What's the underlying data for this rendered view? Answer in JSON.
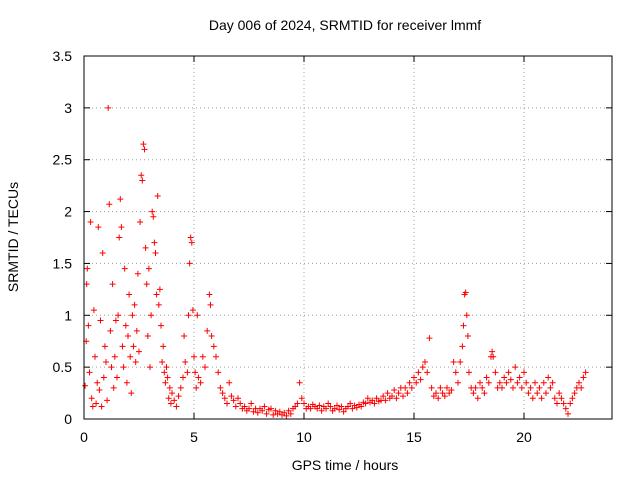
{
  "chart_data": {
    "type": "scatter",
    "title": "Day 006 of 2024, SRMTID for receiver lmmf",
    "xlabel": "GPS time / hours",
    "ylabel": "SRMTID / TECUs",
    "xlim": [
      0,
      24
    ],
    "ylim": [
      0,
      3.5
    ],
    "xticks": [
      0,
      5,
      10,
      15,
      20
    ],
    "xtick_labels": [
      "0",
      "5",
      "10",
      "15",
      "20"
    ],
    "yticks": [
      0,
      0.5,
      1,
      1.5,
      2,
      2.5,
      3,
      3.5
    ],
    "ytick_labels": [
      "0",
      "0.5",
      "1",
      "1.5",
      "2",
      "2.5",
      "3",
      "3.5"
    ],
    "grid": true,
    "marker": "+",
    "color": "#ff0000",
    "series": [
      {
        "name": "SRMTID",
        "points": [
          [
            0.05,
            0.32
          ],
          [
            0.1,
            0.75
          ],
          [
            0.12,
            1.3
          ],
          [
            0.15,
            1.45
          ],
          [
            0.2,
            0.9
          ],
          [
            0.25,
            0.45
          ],
          [
            0.3,
            1.9
          ],
          [
            0.35,
            0.2
          ],
          [
            0.4,
            0.12
          ],
          [
            0.45,
            1.05
          ],
          [
            0.5,
            0.6
          ],
          [
            0.55,
            0.15
          ],
          [
            0.6,
            0.35
          ],
          [
            0.65,
            1.85
          ],
          [
            0.7,
            0.28
          ],
          [
            0.75,
            0.95
          ],
          [
            0.8,
            0.12
          ],
          [
            0.85,
            1.6
          ],
          [
            0.9,
            0.4
          ],
          [
            0.95,
            0.7
          ],
          [
            1.0,
            0.55
          ],
          [
            1.05,
            0.18
          ],
          [
            1.1,
            3.0
          ],
          [
            1.15,
            2.07
          ],
          [
            1.2,
            0.85
          ],
          [
            1.25,
            0.5
          ],
          [
            1.3,
            1.3
          ],
          [
            1.35,
            0.3
          ],
          [
            1.4,
            0.6
          ],
          [
            1.45,
            0.95
          ],
          [
            1.5,
            0.4
          ],
          [
            1.55,
            1.0
          ],
          [
            1.6,
            1.75
          ],
          [
            1.65,
            2.12
          ],
          [
            1.7,
            1.85
          ],
          [
            1.75,
            0.7
          ],
          [
            1.8,
            0.5
          ],
          [
            1.85,
            1.45
          ],
          [
            1.9,
            0.9
          ],
          [
            1.95,
            0.35
          ],
          [
            2.0,
            0.8
          ],
          [
            2.05,
            1.2
          ],
          [
            2.1,
            0.6
          ],
          [
            2.15,
            0.25
          ],
          [
            2.2,
            1.0
          ],
          [
            2.25,
            0.7
          ],
          [
            2.3,
            1.1
          ],
          [
            2.35,
            0.55
          ],
          [
            2.4,
            0.85
          ],
          [
            2.45,
            1.4
          ],
          [
            2.5,
            0.65
          ],
          [
            2.55,
            1.9
          ],
          [
            2.6,
            2.35
          ],
          [
            2.65,
            2.3
          ],
          [
            2.7,
            2.65
          ],
          [
            2.75,
            2.6
          ],
          [
            2.8,
            1.65
          ],
          [
            2.85,
            1.3
          ],
          [
            2.9,
            0.8
          ],
          [
            2.95,
            1.45
          ],
          [
            3.0,
            0.5
          ],
          [
            3.05,
            1.0
          ],
          [
            3.1,
            2.0
          ],
          [
            3.15,
            1.95
          ],
          [
            3.2,
            1.7
          ],
          [
            3.25,
            1.6
          ],
          [
            3.3,
            1.2
          ],
          [
            3.35,
            2.15
          ],
          [
            3.4,
            1.1
          ],
          [
            3.45,
            1.25
          ],
          [
            3.5,
            0.9
          ],
          [
            3.55,
            0.55
          ],
          [
            3.6,
            0.7
          ],
          [
            3.65,
            0.45
          ],
          [
            3.7,
            0.35
          ],
          [
            3.75,
            0.5
          ],
          [
            3.8,
            0.4
          ],
          [
            3.85,
            0.2
          ],
          [
            3.9,
            0.3
          ],
          [
            3.95,
            0.15
          ],
          [
            4.0,
            0.25
          ],
          [
            4.1,
            0.18
          ],
          [
            4.2,
            0.12
          ],
          [
            4.3,
            0.22
          ],
          [
            4.4,
            0.3
          ],
          [
            4.5,
            0.4
          ],
          [
            4.55,
            0.8
          ],
          [
            4.6,
            0.55
          ],
          [
            4.7,
            0.45
          ],
          [
            4.75,
            1.0
          ],
          [
            4.8,
            1.5
          ],
          [
            4.85,
            1.75
          ],
          [
            4.9,
            1.7
          ],
          [
            4.95,
            1.05
          ],
          [
            5.0,
            0.6
          ],
          [
            5.05,
            0.45
          ],
          [
            5.1,
            0.3
          ],
          [
            5.15,
            1.0
          ],
          [
            5.2,
            0.4
          ],
          [
            5.3,
            0.35
          ],
          [
            5.4,
            0.6
          ],
          [
            5.5,
            0.5
          ],
          [
            5.6,
            0.85
          ],
          [
            5.7,
            1.2
          ],
          [
            5.75,
            1.1
          ],
          [
            5.8,
            0.8
          ],
          [
            5.9,
            0.7
          ],
          [
            6.0,
            0.6
          ],
          [
            6.1,
            0.45
          ],
          [
            6.2,
            0.3
          ],
          [
            6.3,
            0.25
          ],
          [
            6.4,
            0.2
          ],
          [
            6.5,
            0.15
          ],
          [
            6.6,
            0.35
          ],
          [
            6.7,
            0.22
          ],
          [
            6.8,
            0.18
          ],
          [
            6.9,
            0.12
          ],
          [
            7.0,
            0.2
          ],
          [
            7.1,
            0.15
          ],
          [
            7.2,
            0.1
          ],
          [
            7.3,
            0.12
          ],
          [
            7.4,
            0.08
          ],
          [
            7.5,
            0.1
          ],
          [
            7.6,
            0.15
          ],
          [
            7.7,
            0.07
          ],
          [
            7.8,
            0.1
          ],
          [
            7.9,
            0.06
          ],
          [
            8.0,
            0.1
          ],
          [
            8.1,
            0.08
          ],
          [
            8.2,
            0.12
          ],
          [
            8.3,
            0.05
          ],
          [
            8.4,
            0.09
          ],
          [
            8.5,
            0.1
          ],
          [
            8.6,
            0.04
          ],
          [
            8.7,
            0.08
          ],
          [
            8.8,
            0.05
          ],
          [
            8.9,
            0.07
          ],
          [
            9.0,
            0.04
          ],
          [
            9.1,
            0.06
          ],
          [
            9.2,
            0.03
          ],
          [
            9.3,
            0.08
          ],
          [
            9.4,
            0.05
          ],
          [
            9.5,
            0.1
          ],
          [
            9.6,
            0.12
          ],
          [
            9.7,
            0.15
          ],
          [
            9.8,
            0.35
          ],
          [
            9.9,
            0.2
          ],
          [
            10.0,
            0.15
          ],
          [
            10.1,
            0.1
          ],
          [
            10.2,
            0.12
          ],
          [
            10.3,
            0.1
          ],
          [
            10.4,
            0.14
          ],
          [
            10.5,
            0.12
          ],
          [
            10.6,
            0.1
          ],
          [
            10.7,
            0.13
          ],
          [
            10.8,
            0.08
          ],
          [
            10.9,
            0.12
          ],
          [
            11.0,
            0.1
          ],
          [
            11.1,
            0.15
          ],
          [
            11.2,
            0.12
          ],
          [
            11.3,
            0.08
          ],
          [
            11.4,
            0.1
          ],
          [
            11.5,
            0.13
          ],
          [
            11.6,
            0.09
          ],
          [
            11.7,
            0.12
          ],
          [
            11.8,
            0.07
          ],
          [
            11.9,
            0.1
          ],
          [
            12.0,
            0.12
          ],
          [
            12.1,
            0.15
          ],
          [
            12.2,
            0.1
          ],
          [
            12.3,
            0.13
          ],
          [
            12.4,
            0.11
          ],
          [
            12.5,
            0.14
          ],
          [
            12.6,
            0.12
          ],
          [
            12.7,
            0.16
          ],
          [
            12.8,
            0.15
          ],
          [
            12.9,
            0.2
          ],
          [
            13.0,
            0.16
          ],
          [
            13.1,
            0.18
          ],
          [
            13.2,
            0.15
          ],
          [
            13.3,
            0.2
          ],
          [
            13.4,
            0.17
          ],
          [
            13.5,
            0.18
          ],
          [
            13.6,
            0.22
          ],
          [
            13.7,
            0.18
          ],
          [
            13.8,
            0.25
          ],
          [
            13.9,
            0.2
          ],
          [
            14.0,
            0.22
          ],
          [
            14.1,
            0.28
          ],
          [
            14.2,
            0.2
          ],
          [
            14.3,
            0.25
          ],
          [
            14.4,
            0.3
          ],
          [
            14.5,
            0.22
          ],
          [
            14.6,
            0.3
          ],
          [
            14.7,
            0.25
          ],
          [
            14.8,
            0.35
          ],
          [
            14.9,
            0.3
          ],
          [
            15.0,
            0.4
          ],
          [
            15.1,
            0.35
          ],
          [
            15.2,
            0.45
          ],
          [
            15.3,
            0.38
          ],
          [
            15.4,
            0.5
          ],
          [
            15.5,
            0.55
          ],
          [
            15.6,
            0.45
          ],
          [
            15.7,
            0.78
          ],
          [
            15.8,
            0.3
          ],
          [
            15.9,
            0.22
          ],
          [
            16.0,
            0.25
          ],
          [
            16.1,
            0.2
          ],
          [
            16.2,
            0.3
          ],
          [
            16.3,
            0.25
          ],
          [
            16.4,
            0.22
          ],
          [
            16.5,
            0.3
          ],
          [
            16.6,
            0.25
          ],
          [
            16.7,
            0.28
          ],
          [
            16.8,
            0.55
          ],
          [
            16.9,
            0.45
          ],
          [
            17.0,
            0.35
          ],
          [
            17.1,
            0.55
          ],
          [
            17.2,
            0.7
          ],
          [
            17.25,
            0.9
          ],
          [
            17.3,
            1.2
          ],
          [
            17.35,
            1.22
          ],
          [
            17.4,
            1.0
          ],
          [
            17.45,
            0.8
          ],
          [
            17.5,
            0.45
          ],
          [
            17.6,
            0.3
          ],
          [
            17.7,
            0.25
          ],
          [
            17.8,
            0.3
          ],
          [
            17.9,
            0.2
          ],
          [
            18.0,
            0.35
          ],
          [
            18.1,
            0.3
          ],
          [
            18.2,
            0.25
          ],
          [
            18.3,
            0.4
          ],
          [
            18.4,
            0.35
          ],
          [
            18.5,
            0.6
          ],
          [
            18.55,
            0.65
          ],
          [
            18.6,
            0.6
          ],
          [
            18.7,
            0.45
          ],
          [
            18.8,
            0.3
          ],
          [
            18.9,
            0.35
          ],
          [
            19.0,
            0.3
          ],
          [
            19.1,
            0.4
          ],
          [
            19.2,
            0.35
          ],
          [
            19.3,
            0.45
          ],
          [
            19.4,
            0.38
          ],
          [
            19.5,
            0.3
          ],
          [
            19.6,
            0.5
          ],
          [
            19.7,
            0.35
          ],
          [
            19.8,
            0.4
          ],
          [
            19.9,
            0.3
          ],
          [
            20.0,
            0.45
          ],
          [
            20.1,
            0.35
          ],
          [
            20.2,
            0.25
          ],
          [
            20.3,
            0.3
          ],
          [
            20.4,
            0.2
          ],
          [
            20.5,
            0.35
          ],
          [
            20.6,
            0.25
          ],
          [
            20.7,
            0.3
          ],
          [
            20.8,
            0.2
          ],
          [
            20.9,
            0.35
          ],
          [
            21.0,
            0.25
          ],
          [
            21.1,
            0.4
          ],
          [
            21.2,
            0.3
          ],
          [
            21.3,
            0.35
          ],
          [
            21.4,
            0.2
          ],
          [
            21.5,
            0.15
          ],
          [
            21.6,
            0.25
          ],
          [
            21.7,
            0.2
          ],
          [
            21.8,
            0.15
          ],
          [
            21.9,
            0.1
          ],
          [
            22.0,
            0.05
          ],
          [
            22.1,
            0.15
          ],
          [
            22.2,
            0.2
          ],
          [
            22.3,
            0.25
          ],
          [
            22.4,
            0.3
          ],
          [
            22.5,
            0.35
          ],
          [
            22.6,
            0.3
          ],
          [
            22.7,
            0.4
          ],
          [
            22.8,
            0.45
          ]
        ]
      }
    ]
  }
}
